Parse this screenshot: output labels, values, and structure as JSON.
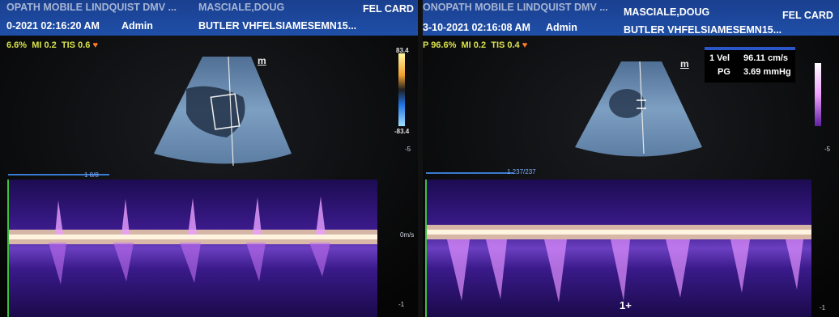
{
  "left": {
    "header": {
      "clinic": "OPATH MOBILE LINDQUIST DMV ...",
      "owner": "MASCIALE,DOUG",
      "study": "FEL CARD",
      "datetime": "0-2021  02:16:20 AM",
      "operator": "Admin",
      "patient": "BUTLER VHFELSIAMESEMN15..."
    },
    "info": {
      "power": "6.6%",
      "mi": "MI 0.2",
      "tis": "TIS 0.6"
    },
    "m_marker": "m",
    "color_scale": {
      "top": "83.4",
      "bottom": "-83.4"
    },
    "sweep_label": "1 8/8",
    "baseline_label": "0m/s",
    "tick_labels": [
      "-5",
      "-1"
    ]
  },
  "right": {
    "header": {
      "clinic": "ONOPATH MOBILE LINDQUIST DMV ...",
      "owner": "MASCIALE,DOUG",
      "study": "FEL CARD",
      "datetime": "3-10-2021  02:16:08 AM",
      "operator": "Admin",
      "patient": "BUTLER VHFELSIAMESEMN15..."
    },
    "info": {
      "power": "P 96.6%",
      "mi": "MI 0.2",
      "tis": "TIS 0.4"
    },
    "m_marker": "m",
    "measurement": {
      "vel_label": "1 Vel",
      "vel_value": "96.11 cm/s",
      "pg_label": "PG",
      "pg_value": "3.69 mmHg"
    },
    "sweep_label": "1 237/237",
    "cursor_label": "1+",
    "tick_labels": [
      "-5",
      "-1"
    ]
  },
  "colors": {
    "header_blue": "#1f4fa8",
    "info_yellow": "#d8e24a",
    "doppler_purple": "#3a1a8a"
  }
}
